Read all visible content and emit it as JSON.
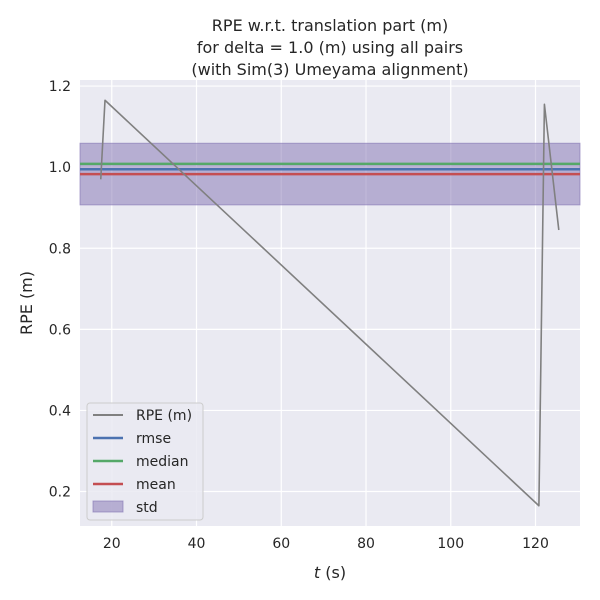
{
  "chart_data": {
    "type": "line",
    "title_lines": [
      "RPE w.r.t. translation part (m)",
      "for delta = 1.0 (m) using all pairs",
      "(with Sim(3) Umeyama alignment)"
    ],
    "xlabel_italic": "t",
    "xlabel_rest": " (s)",
    "ylabel": "RPE (m)",
    "xlim": [
      12.5,
      130.5
    ],
    "ylim": [
      0.115,
      1.215
    ],
    "xticks": [
      20,
      40,
      60,
      80,
      100,
      120
    ],
    "yticks": [
      0.2,
      0.4,
      0.6,
      0.8,
      1.0,
      1.2
    ],
    "xtick_labels": [
      "20",
      "40",
      "60",
      "80",
      "100",
      "120"
    ],
    "ytick_labels": [
      "0.2",
      "0.4",
      "0.6",
      "0.8",
      "1.0",
      "1.2"
    ],
    "grid": true,
    "legend_position": "lower-left",
    "series": [
      {
        "name": "RPE (m)",
        "color": "#808080",
        "x": [
          17.4,
          17.6,
          18.4,
          120.8,
          122.1,
          125.5
        ],
        "y": [
          0.97,
          1.01,
          1.165,
          0.165,
          1.155,
          0.845
        ]
      }
    ],
    "stats": {
      "rmse": {
        "name": "rmse",
        "value": 0.995,
        "color": "#4c72b0"
      },
      "median": {
        "name": "median",
        "value": 1.008,
        "color": "#55a868"
      },
      "mean": {
        "name": "mean",
        "value": 0.983,
        "color": "#c44e52"
      },
      "std": {
        "name": "std",
        "lower": 0.907,
        "upper": 1.059,
        "color": "#8172b2"
      }
    },
    "legend_order": [
      "RPE (m)",
      "rmse",
      "median",
      "mean",
      "std"
    ]
  }
}
